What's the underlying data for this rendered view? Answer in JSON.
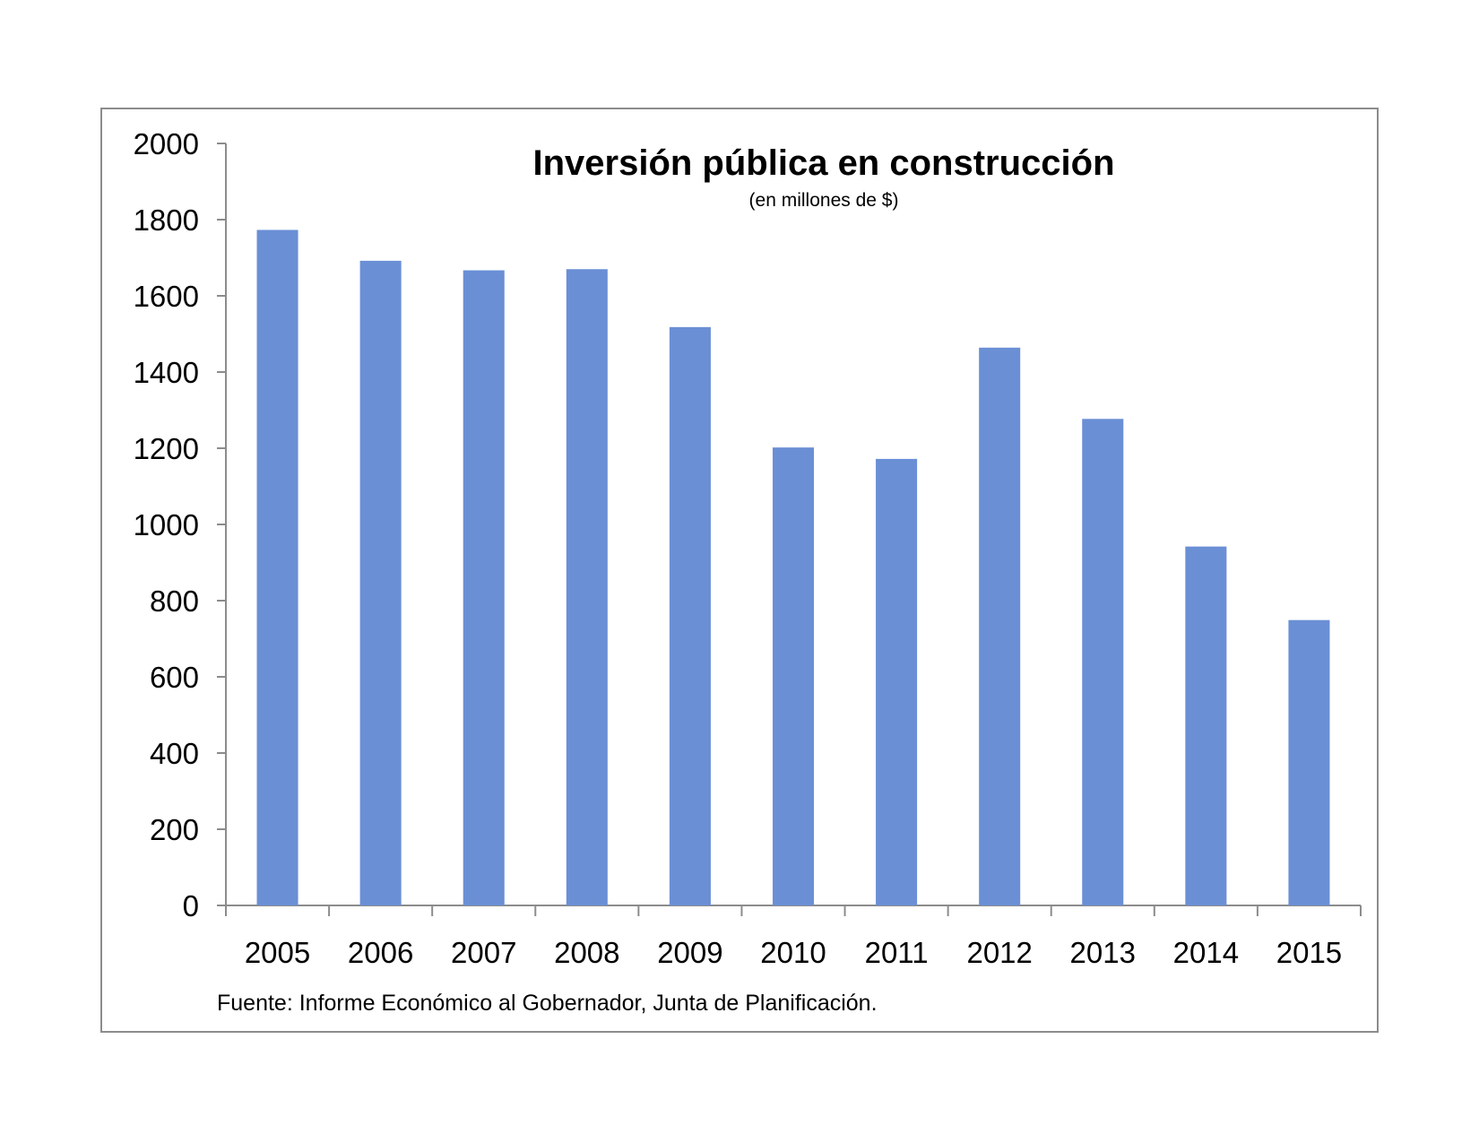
{
  "chart_data": {
    "type": "bar",
    "title": "Inversión pública en construcción",
    "subtitle": "(en millones de $)",
    "source": "Fuente: Informe Económico al Gobernador, Junta de Planificación.",
    "xlabel": "",
    "ylabel": "",
    "categories": [
      "2005",
      "2006",
      "2007",
      "2008",
      "2009",
      "2010",
      "2011",
      "2012",
      "2013",
      "2014",
      "2015"
    ],
    "values": [
      1773,
      1692,
      1667,
      1670,
      1518,
      1202,
      1172,
      1464,
      1277,
      942,
      749
    ],
    "ylim": [
      0,
      2000
    ],
    "yticks": [
      0,
      200,
      400,
      600,
      800,
      1000,
      1200,
      1400,
      1600,
      1800,
      2000
    ],
    "grid": false,
    "legend": "none",
    "bar_color": "#6a8fd5"
  }
}
